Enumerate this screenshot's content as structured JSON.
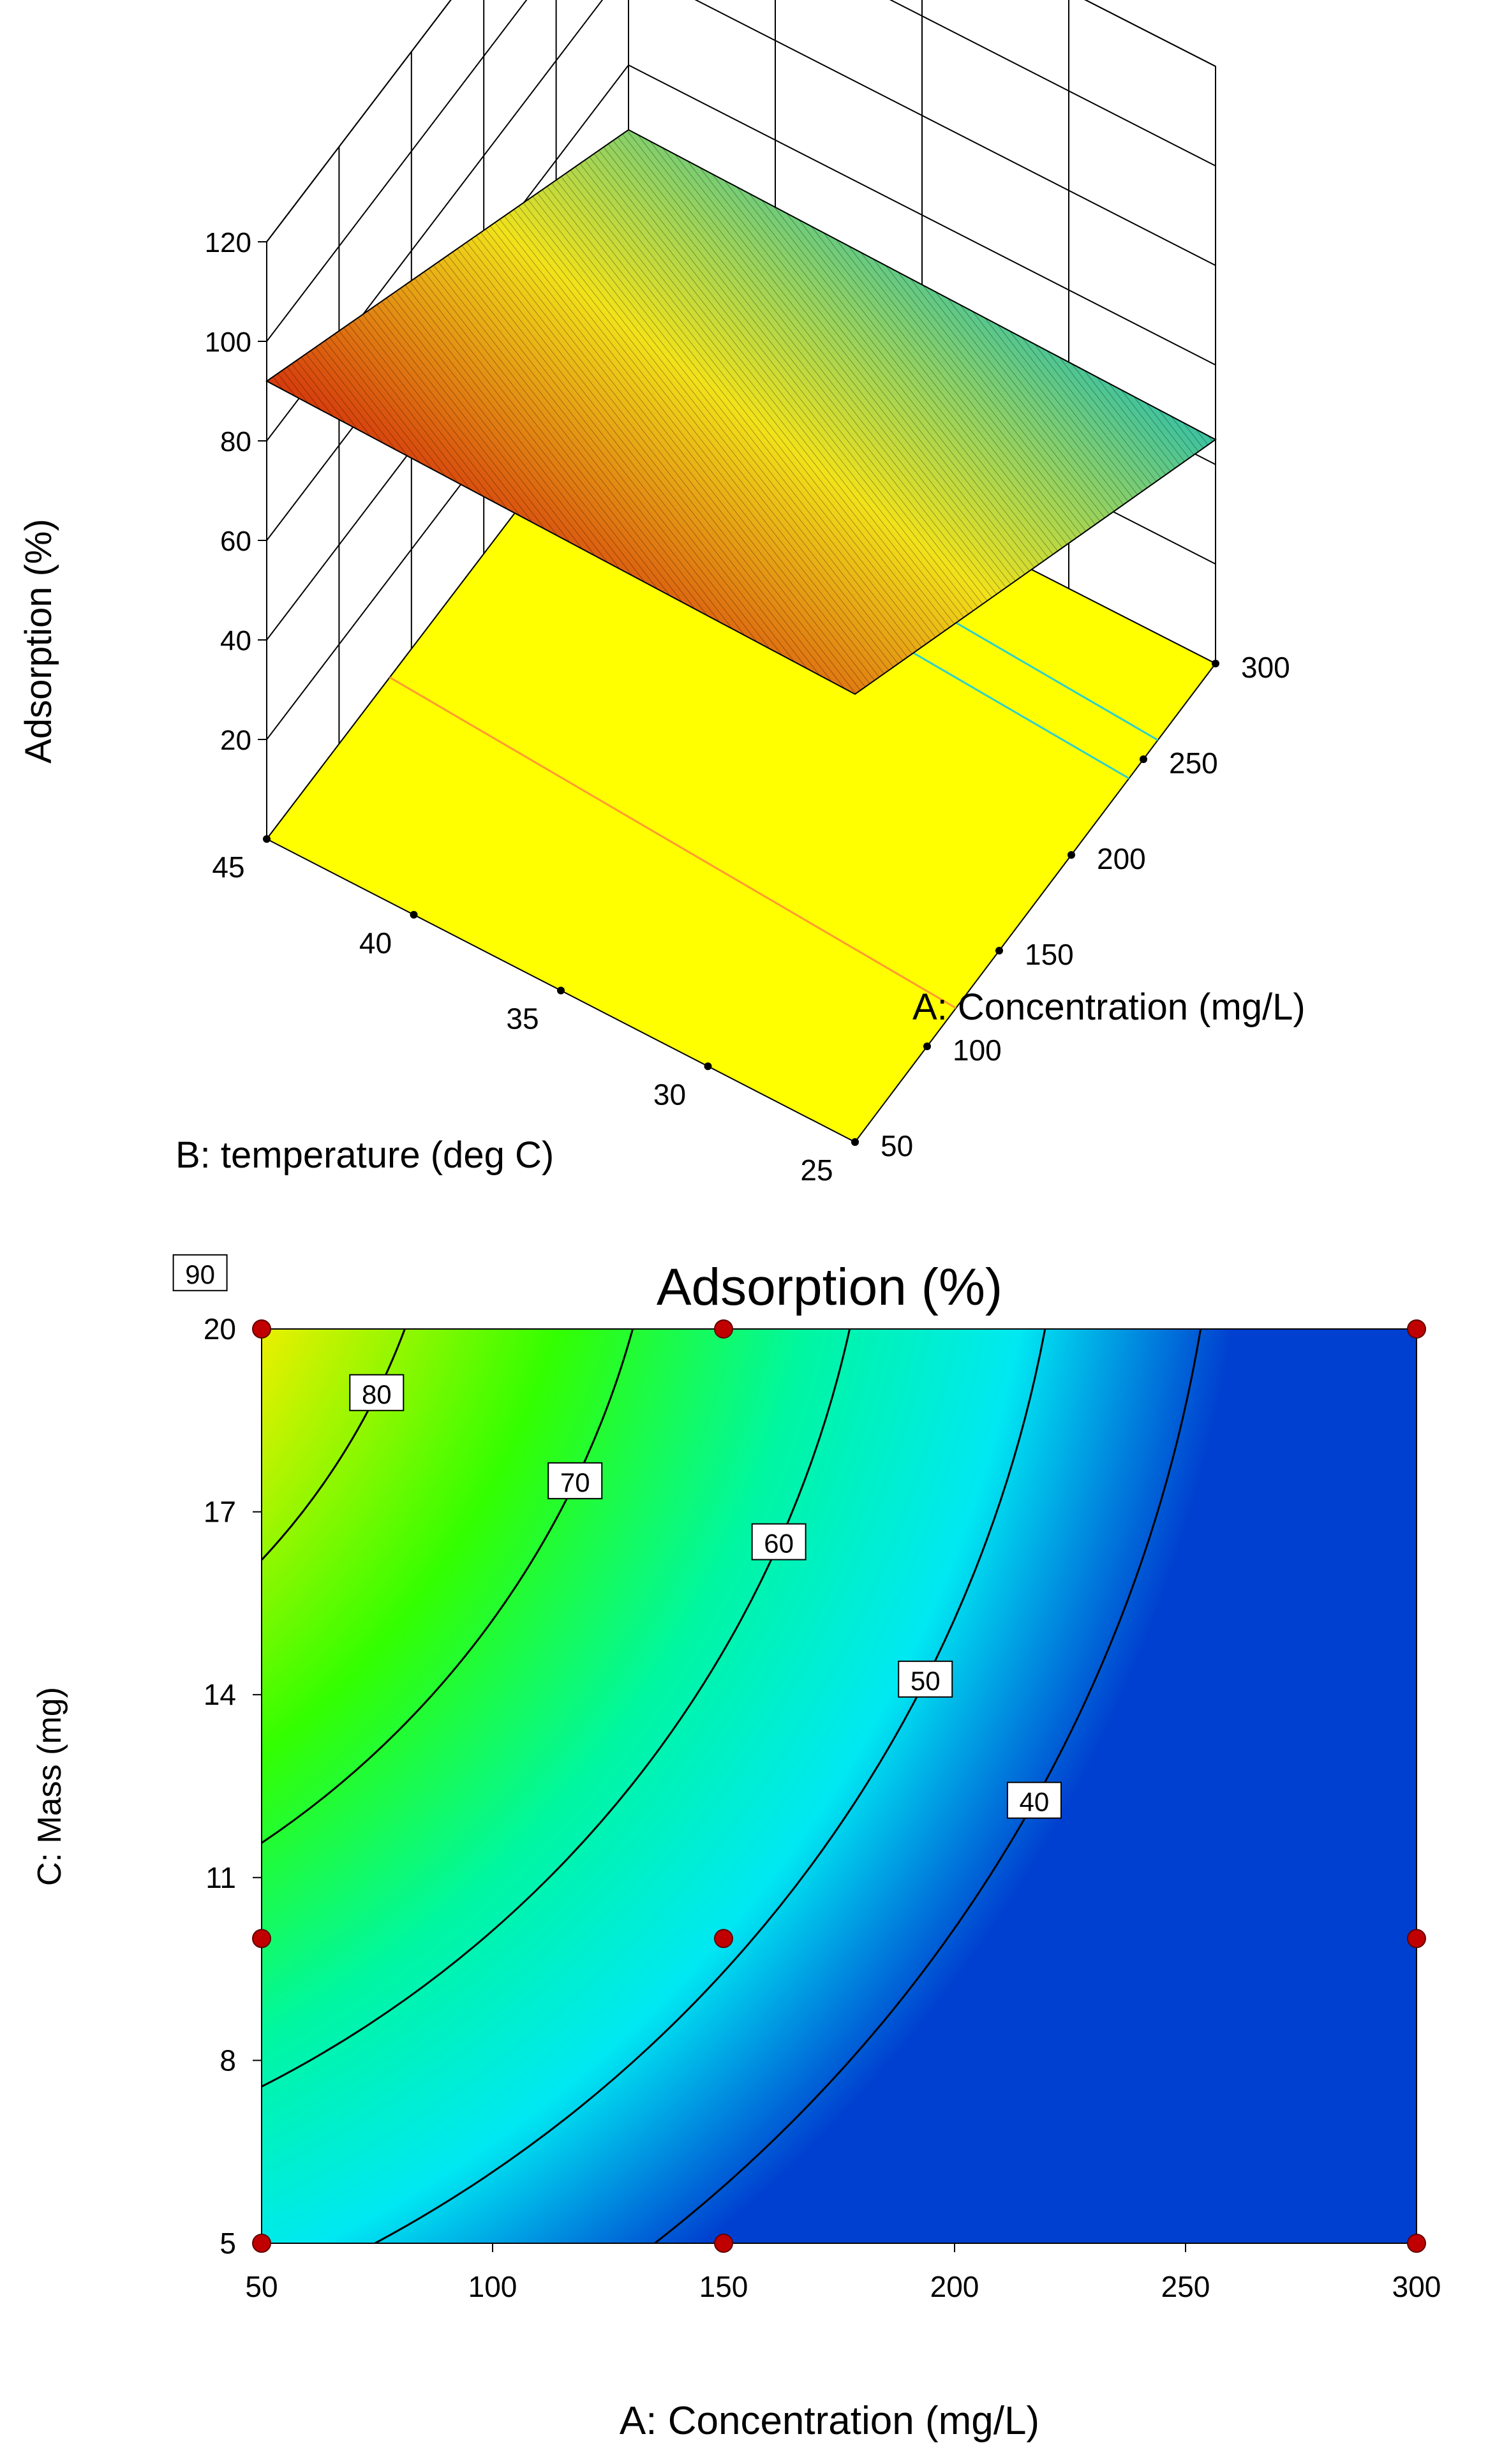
{
  "chart_data": [
    {
      "type": "surface3d",
      "zlabel": "Adsorption  (%)",
      "xlabel": "A: Concentration (mg/L)",
      "ylabel": "B: temperature (deg C)",
      "z_ticks": [
        "120",
        "100",
        "80",
        "60",
        "40",
        "20"
      ],
      "x_ticks": [
        "50",
        "100",
        "150",
        "200",
        "250",
        "300"
      ],
      "y_ticks": [
        "25",
        "30",
        "35",
        "40",
        "45"
      ],
      "xlim": [
        50,
        300
      ],
      "ylim": [
        25,
        45
      ],
      "zlim": [
        0,
        120
      ],
      "surface_corners": [
        {
          "concentration": 50,
          "temperature": 45,
          "adsorption": 92
        },
        {
          "concentration": 50,
          "temperature": 25,
          "adsorption": 90
        },
        {
          "concentration": 300,
          "temperature": 25,
          "adsorption": 45
        },
        {
          "concentration": 300,
          "temperature": 45,
          "adsorption": 47
        }
      ],
      "colors": {
        "high": "#d11e0a",
        "mid": "#f2e21a",
        "low": "#1fbdb6",
        "floor": "#ffff00"
      }
    },
    {
      "type": "contour",
      "title": "Adsorption  (%)",
      "xlabel": "A: Concentration (mg/L)",
      "ylabel": "C: Mass (mg)",
      "x_ticks": [
        "50",
        "100",
        "150",
        "200",
        "250",
        "300"
      ],
      "y_ticks": [
        "5",
        "8",
        "11",
        "14",
        "17",
        "20"
      ],
      "xlim": [
        50,
        300
      ],
      "ylim": [
        5,
        20
      ],
      "contour_levels": [
        {
          "label": "90",
          "value": 90
        },
        {
          "label": "80",
          "value": 80
        },
        {
          "label": "70",
          "value": 70
        },
        {
          "label": "60",
          "value": 60
        },
        {
          "label": "50",
          "value": 50
        },
        {
          "label": "40",
          "value": 40
        }
      ],
      "design_points": [
        {
          "concentration": 50,
          "mass": 20
        },
        {
          "concentration": 150,
          "mass": 20
        },
        {
          "concentration": 300,
          "mass": 20
        },
        {
          "concentration": 50,
          "mass": 10
        },
        {
          "concentration": 150,
          "mass": 10
        },
        {
          "concentration": 300,
          "mass": 10
        },
        {
          "concentration": 50,
          "mass": 5
        },
        {
          "concentration": 150,
          "mass": 5
        },
        {
          "concentration": 300,
          "mass": 5
        }
      ],
      "colors": {
        "c95": "#e60000",
        "c85": "#ff8c00",
        "c75": "#e6f000",
        "c65": "#33ff00",
        "c55": "#00f7a0",
        "c45": "#00e8f2",
        "c35": "#0040d0",
        "points": "#c00000"
      }
    }
  ]
}
